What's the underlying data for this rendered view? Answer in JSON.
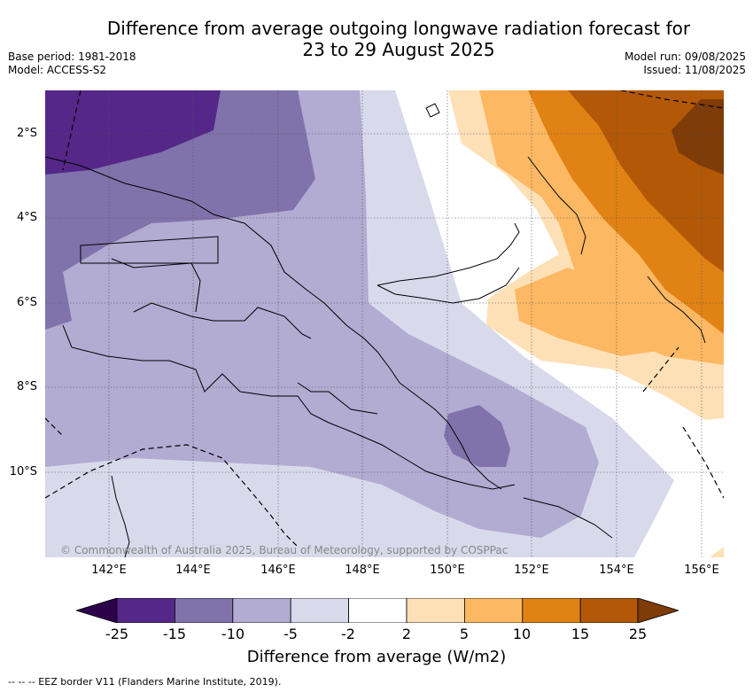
{
  "title_line1": "Difference from average outgoing longwave radiation forecast for",
  "title_line2": "23 to 29 August 2025",
  "base_period": "Base period: 1981-2018",
  "model": "Model: ACCESS-S2",
  "model_run": "Model run: 09/08/2025",
  "issued": "Issued: 11/08/2025",
  "lat_labels": [
    "2°S",
    "4°S",
    "6°S",
    "8°S",
    "10°S"
  ],
  "lon_labels": [
    "142°E",
    "144°E",
    "146°E",
    "148°E",
    "150°E",
    "152°E",
    "154°E",
    "156°E"
  ],
  "copyright": "© Commonwealth of Australia 2025, Bureau of Meteorology, supported by COSPPac",
  "colorbar": {
    "title": "Difference from average (W/m2)",
    "ticks": [
      "-25",
      "-15",
      "-10",
      "-5",
      "-2",
      "2",
      "5",
      "10",
      "15",
      "25"
    ],
    "colors": [
      "#2d004b",
      "#542788",
      "#8073ac",
      "#b2abd2",
      "#d8daeb",
      "#ffffff",
      "#fee0b6",
      "#fdb863",
      "#e08214",
      "#b35806",
      "#7f3b08"
    ]
  },
  "footer": "-- -- -- EEZ border V11 (Flanders Marine Institute, 2019)."
}
